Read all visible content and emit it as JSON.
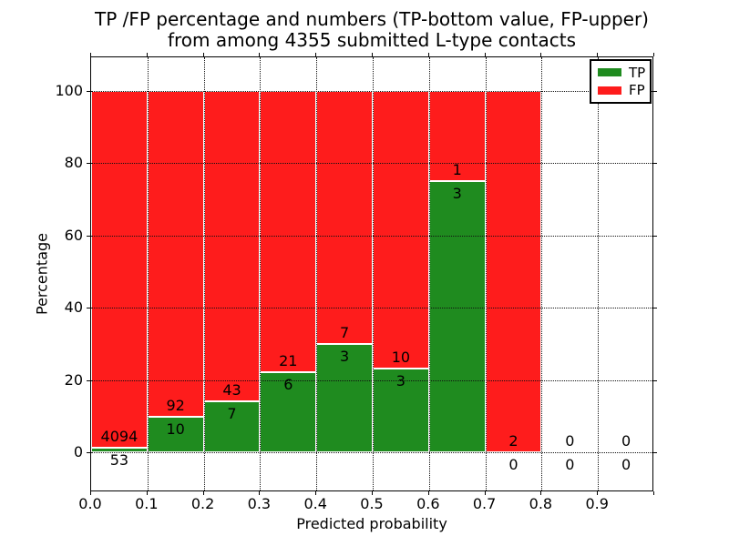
{
  "title": {
    "line1": "TP /FP percentage and numbers (TP-bottom value, FP-upper)",
    "line2": "from among 4355 submitted L-type contacts"
  },
  "axes": {
    "xlabel": "Predicted probability",
    "ylabel": "Percentage",
    "x_ticks": [
      "0.0",
      "0.1",
      "0.2",
      "0.3",
      "0.4",
      "0.5",
      "0.6",
      "0.7",
      "0.8",
      "0.9"
    ],
    "y_ticks": [
      "0",
      "20",
      "40",
      "60",
      "80",
      "100"
    ]
  },
  "legend": {
    "position": "upper right",
    "items": [
      {
        "label": "TP",
        "color": "#1f8b1f"
      },
      {
        "label": "FP",
        "color": "#fe1c1c"
      }
    ]
  },
  "chart_data": {
    "type": "bar",
    "stacked": true,
    "normalized_to_percent": true,
    "title": "TP /FP percentage and numbers (TP-bottom value, FP-upper) from among 4355 submitted L-type contacts",
    "xlabel": "Predicted probability",
    "ylabel": "Percentage",
    "xlim": [
      0.0,
      1.0
    ],
    "ylim": [
      -11,
      110
    ],
    "grid": true,
    "legend_position": "upper right",
    "bin_width": 0.1,
    "total_submitted_contacts": 4355,
    "categories": [
      "0.0-0.1",
      "0.1-0.2",
      "0.2-0.3",
      "0.3-0.4",
      "0.4-0.5",
      "0.5-0.6",
      "0.6-0.7",
      "0.7-0.8",
      "0.8-0.9",
      "0.9-1.0"
    ],
    "series": [
      {
        "name": "TP",
        "color": "#1f8b1f",
        "counts": [
          53,
          10,
          7,
          6,
          3,
          3,
          3,
          0,
          0,
          0
        ],
        "pct_of_bin": [
          1.3,
          9.8,
          14.0,
          22.2,
          30.0,
          23.1,
          75.0,
          0.0,
          0,
          0
        ]
      },
      {
        "name": "FP",
        "color": "#fe1c1c",
        "counts": [
          4094,
          92,
          43,
          21,
          7,
          10,
          1,
          2,
          0,
          0
        ],
        "pct_of_bin": [
          98.7,
          90.2,
          86.0,
          77.8,
          70.0,
          76.9,
          25.0,
          100.0,
          0,
          0
        ]
      }
    ],
    "empty_bins": [
      "0.8-0.9",
      "0.9-1.0"
    ]
  }
}
